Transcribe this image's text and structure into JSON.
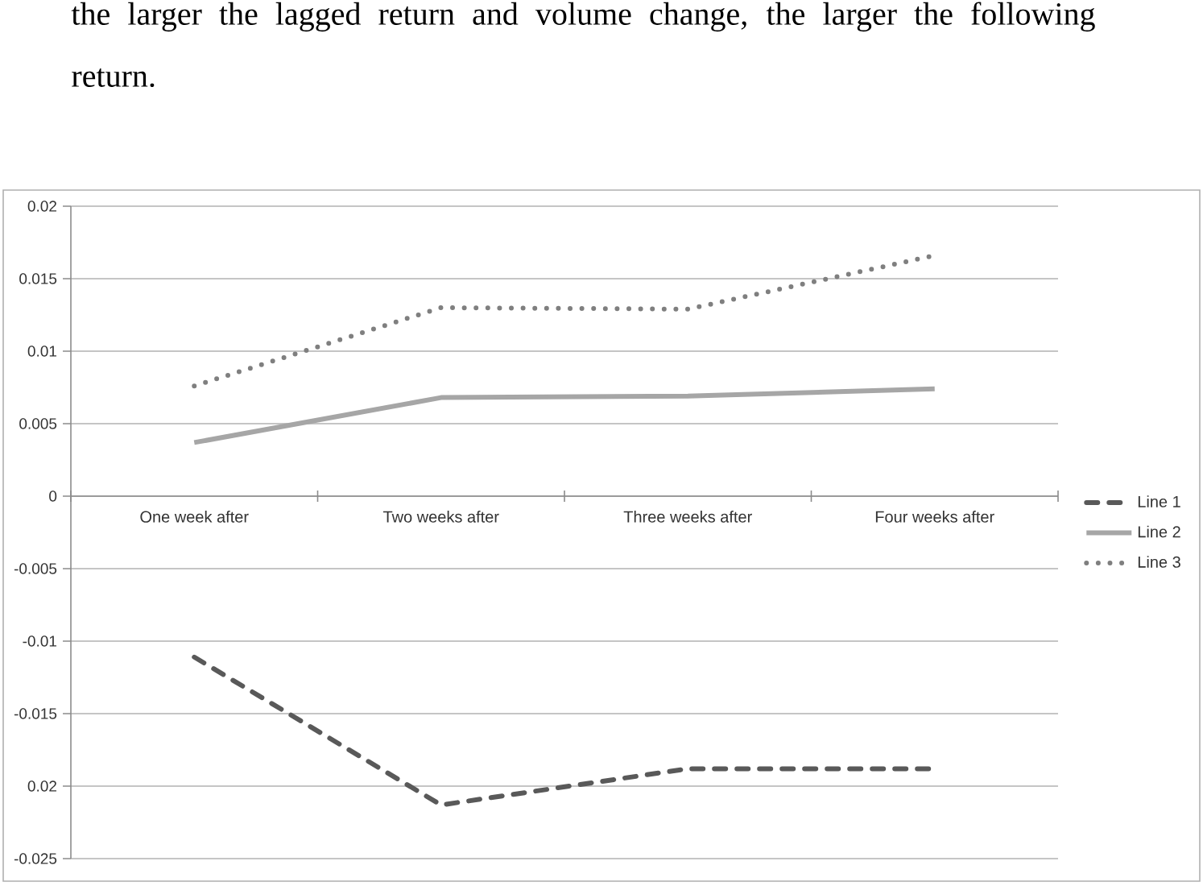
{
  "chart_data": {
    "type": "line",
    "annotations": [
      "the larger the lagged return and volume change, the larger the following return."
    ],
    "categories": [
      "One week after",
      "Two weeks after",
      "Three weeks after",
      "Four weeks after"
    ],
    "series": [
      {
        "name": "Line 1",
        "color": "#595959",
        "line_style": "dashed",
        "values": [
          -0.0111,
          -0.0213,
          -0.0188,
          -0.0188
        ]
      },
      {
        "name": "Line 2",
        "color": "#a6a6a6",
        "line_style": "solid",
        "values": [
          0.0037,
          0.0068,
          0.0069,
          0.0074
        ]
      },
      {
        "name": "Line 3",
        "color": "#7f7f7f",
        "line_style": "dotted",
        "values": [
          0.0076,
          0.013,
          0.0129,
          0.0166
        ]
      }
    ],
    "ylim": [
      -0.025,
      0.02
    ],
    "yticks": [
      -0.025,
      {
        "value": -0.02,
        "label": "0.02"
      },
      -0.015,
      -0.01,
      -0.005,
      0,
      0.005,
      0.01,
      0.015,
      0.02
    ],
    "grid": "y",
    "legend": "right"
  }
}
